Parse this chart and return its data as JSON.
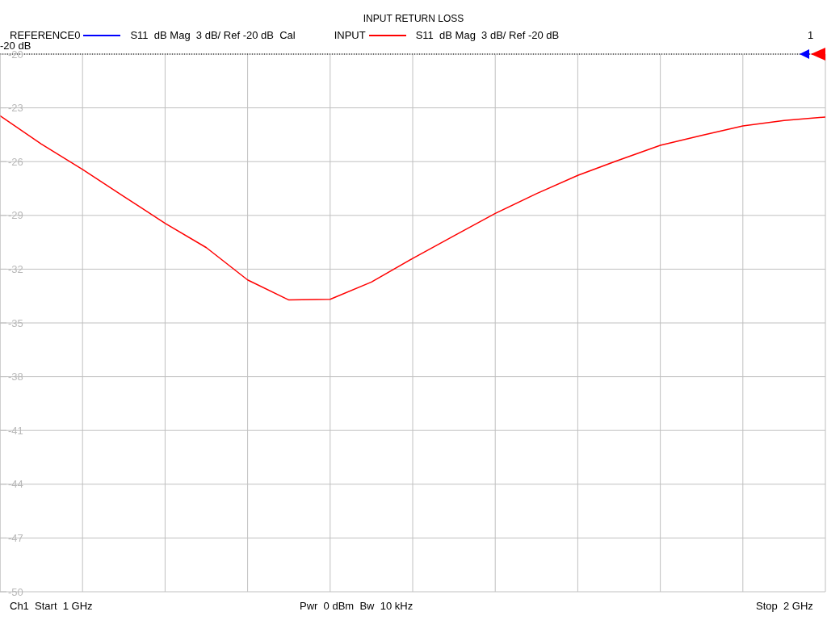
{
  "chart_data": {
    "type": "line",
    "title": "INPUT RETURN LOSS",
    "categories": [
      null,
      null,
      null,
      null,
      null,
      null,
      null,
      null,
      null,
      null,
      null,
      null,
      null,
      null,
      null,
      null,
      null,
      null,
      null,
      null,
      null
    ],
    "series": [
      {
        "name": "S11  dB Mag  3 dB/ Ref -20 dB  Cal",
        "color": "#0000ff",
        "values": [
          null,
          null,
          null,
          null,
          null,
          null,
          null,
          null,
          null,
          null,
          null,
          null,
          null,
          null,
          null,
          null,
          null,
          null,
          null,
          null,
          null
        ]
      },
      {
        "name": "S11  dB Mag  3 dB/ Ref -20 dB",
        "color": "#ff0000",
        "values": [
          -23.44,
          -25.02,
          -26.44,
          -27.94,
          -29.44,
          -30.8,
          -32.6,
          -33.72,
          -33.68,
          -32.72,
          -31.4,
          -30.14,
          -28.89,
          -27.79,
          -26.77,
          -25.91,
          -25.09,
          -24.54,
          -24.01,
          -23.71,
          -23.51
        ]
      }
    ],
    "ylim": [
      -50,
      -20
    ],
    "yticks": [
      -20,
      -23,
      -26,
      -29,
      -32,
      -35,
      -38,
      -41,
      -44,
      -47,
      -50
    ],
    "tick_labels": "y",
    "grid": true,
    "legend": "top left",
    "marker": "none",
    "line_style": "solid",
    "ref_lines": [
      {
        "axis": "y",
        "value": -20,
        "label": "-20 dB",
        "color": "#000000",
        "line_style": "dotted"
      }
    ],
    "annotations": [
      "REFERENCE0",
      "INPUT",
      "1",
      "Ch1  Start  1 GHz",
      "Pwr  0 dBm  Bw  10 kHz",
      "Stop  2 GHz"
    ]
  }
}
